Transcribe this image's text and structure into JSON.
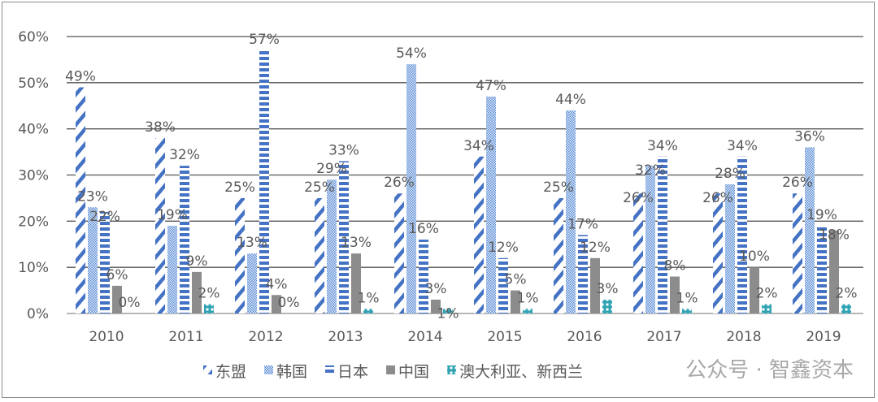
{
  "chart_data": {
    "type": "bar",
    "categories": [
      "2010",
      "2011",
      "2012",
      "2013",
      "2014",
      "2015",
      "2016",
      "2017",
      "2018",
      "2019"
    ],
    "series": [
      {
        "name": "东盟",
        "pattern": "diagonal",
        "color": "#4472c4",
        "values": [
          49,
          38,
          25,
          25,
          26,
          34,
          25,
          26,
          26,
          26
        ]
      },
      {
        "name": "韩国",
        "pattern": "checker",
        "color": "#5b8ed6",
        "values": [
          23,
          19,
          13,
          29,
          54,
          47,
          44,
          32,
          28,
          36
        ]
      },
      {
        "name": "日本",
        "pattern": "horizontal",
        "color": "#4472c4",
        "values": [
          22,
          32,
          57,
          33,
          16,
          12,
          17,
          34,
          34,
          19
        ]
      },
      {
        "name": "中国",
        "pattern": "solid",
        "color": "#8c8c8c",
        "values": [
          6,
          9,
          4,
          13,
          3,
          5,
          12,
          8,
          10,
          18
        ]
      },
      {
        "name": "澳大利亚、新西兰",
        "pattern": "lattice",
        "color": "#2fa3b3",
        "values": [
          0,
          2,
          0,
          1,
          1,
          1,
          3,
          1,
          2,
          2
        ]
      }
    ],
    "ylim": [
      0,
      60
    ],
    "yticks": [
      "0%",
      "10%",
      "20%",
      "30%",
      "40%",
      "50%",
      "60%"
    ],
    "value_suffix": "%",
    "grid": true,
    "legend_position": "bottom"
  },
  "watermark": "公众号 · 智鑫资本"
}
